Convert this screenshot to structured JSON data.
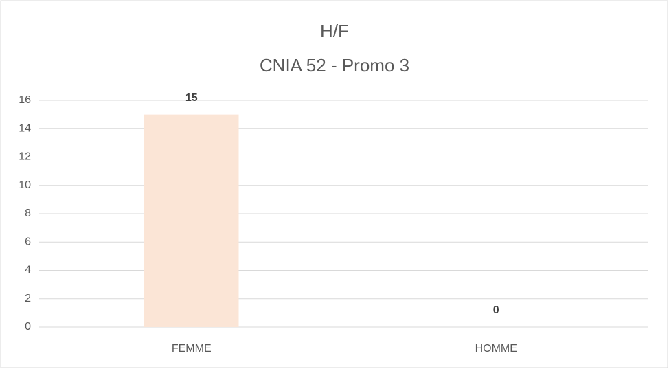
{
  "chart_data": {
    "type": "bar",
    "title": "H/F",
    "subtitle": "CNIA 52 - Promo 3",
    "categories": [
      "FEMME",
      "HOMME"
    ],
    "values": [
      15,
      0
    ],
    "colors": [
      "#fbe5d6",
      "#c00000"
    ],
    "ylim": [
      0,
      16
    ],
    "yticks": [
      0,
      2,
      4,
      6,
      8,
      10,
      12,
      14,
      16
    ],
    "grid": true
  }
}
